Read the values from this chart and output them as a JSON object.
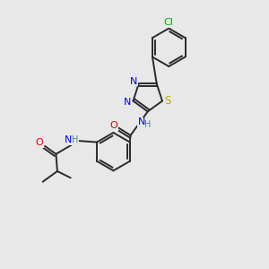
{
  "bg_color": "#e8e8e8",
  "bond_color": "#2a2a2a",
  "bond_width": 1.4,
  "atom_colors": {
    "C": "#2a2a2a",
    "N": "#0000ee",
    "O": "#dd0000",
    "S": "#bbaa00",
    "Cl": "#00aa00",
    "H": "#448888"
  },
  "font_size": 7.5
}
